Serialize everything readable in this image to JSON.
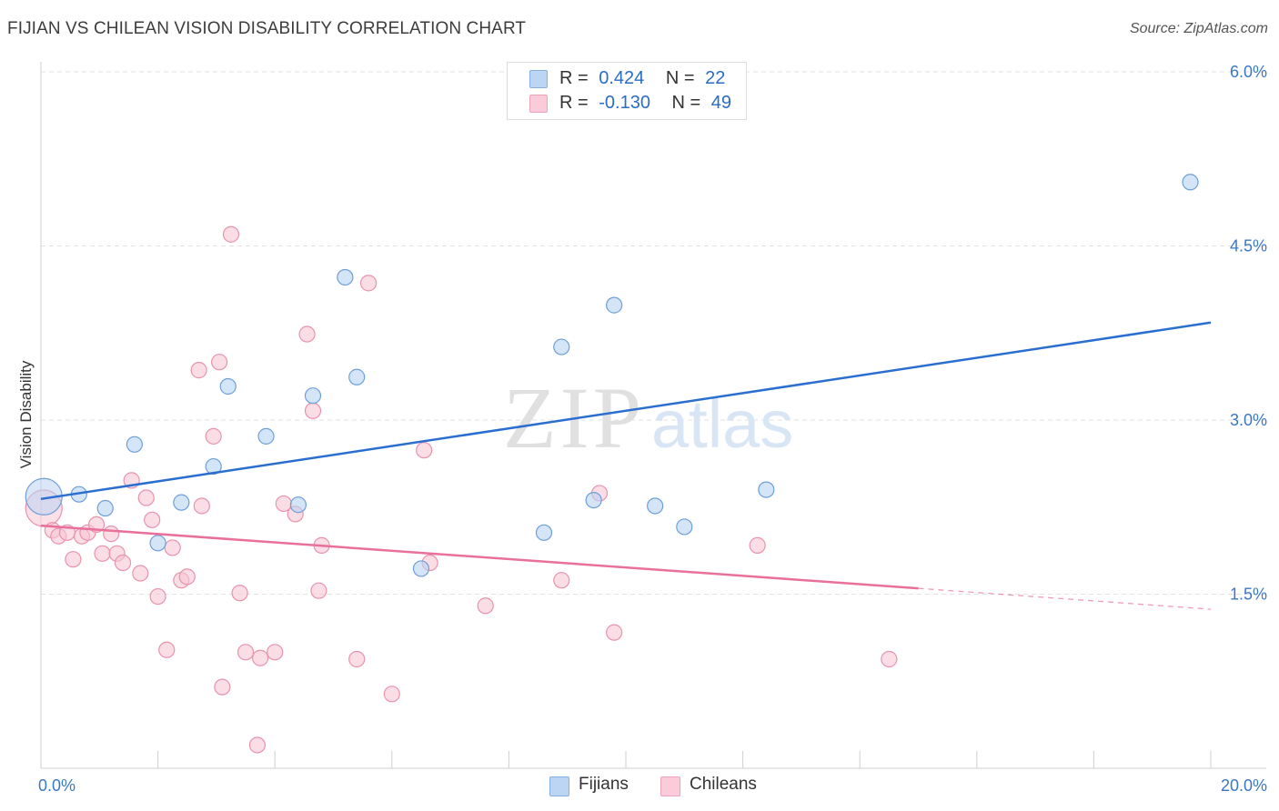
{
  "header": {
    "title": "FIJIAN VS CHILEAN VISION DISABILITY CORRELATION CHART",
    "source": "Source: ZipAtlas.com"
  },
  "watermark": {
    "zip": "ZIP",
    "atlas": "atlas"
  },
  "legend": {
    "rows": [
      {
        "r_label": "R =",
        "r_value": "0.424",
        "n_label": "N =",
        "n_value": "22",
        "color": "#a8c8f0"
      },
      {
        "r_label": "R =",
        "r_value": "-0.130",
        "n_label": "N =",
        "n_value": "49",
        "color": "#f5b8cb"
      }
    ]
  },
  "bottom_legend": {
    "fijians": "Fijians",
    "chileans": "Chileans"
  },
  "colors": {
    "fijians_fill": "#b9d3f3",
    "fijians_stroke": "#6e9fd8",
    "fijians_line": "#2a6fd0",
    "chileans_fill": "#f9c7d6",
    "chileans_stroke": "#e893ae",
    "chileans_line": "#e8709a",
    "grid": "#e2e2e2",
    "tick_label": "#3a78c4"
  },
  "chart_data": {
    "type": "scatter",
    "title": "FIJIAN VS CHILEAN VISION DISABILITY CORRELATION CHART",
    "ylabel": "Vision Disability",
    "xlabel": "",
    "xlim": [
      0,
      20
    ],
    "ylim": [
      0,
      6.2
    ],
    "x_tick_labels": [
      "0.0%",
      "20.0%"
    ],
    "y_ticks": [
      1.5,
      3.0,
      4.5,
      6.0
    ],
    "y_tick_labels": [
      "1.5%",
      "3.0%",
      "4.5%",
      "6.0%"
    ],
    "grid": true,
    "legend_position": "top-center",
    "series": [
      {
        "name": "Fijians",
        "r": 0.424,
        "n": 22,
        "trend": {
          "x": [
            0,
            20
          ],
          "y": [
            2.32,
            3.84
          ],
          "dashed_from": null
        },
        "points": [
          {
            "x": 0.05,
            "y": 2.34,
            "big": true
          },
          {
            "x": 0.65,
            "y": 2.36
          },
          {
            "x": 1.1,
            "y": 2.24
          },
          {
            "x": 1.6,
            "y": 2.79
          },
          {
            "x": 2.0,
            "y": 1.94
          },
          {
            "x": 2.4,
            "y": 2.29
          },
          {
            "x": 2.95,
            "y": 2.6
          },
          {
            "x": 3.2,
            "y": 3.29
          },
          {
            "x": 3.85,
            "y": 2.86
          },
          {
            "x": 4.4,
            "y": 2.27
          },
          {
            "x": 4.65,
            "y": 3.21
          },
          {
            "x": 5.2,
            "y": 4.23
          },
          {
            "x": 5.4,
            "y": 3.37
          },
          {
            "x": 6.5,
            "y": 1.72
          },
          {
            "x": 8.6,
            "y": 2.03
          },
          {
            "x": 8.9,
            "y": 3.63
          },
          {
            "x": 9.45,
            "y": 2.31
          },
          {
            "x": 9.8,
            "y": 3.99
          },
          {
            "x": 10.5,
            "y": 2.26
          },
          {
            "x": 11.0,
            "y": 2.08
          },
          {
            "x": 12.4,
            "y": 2.4
          },
          {
            "x": 19.65,
            "y": 5.05
          }
        ]
      },
      {
        "name": "Chileans",
        "r": -0.13,
        "n": 49,
        "trend": {
          "x": [
            0,
            20
          ],
          "y": [
            2.09,
            1.37
          ],
          "dashed_from": 15.0
        },
        "points": [
          {
            "x": 0.05,
            "y": 2.24,
            "big": true
          },
          {
            "x": 0.2,
            "y": 2.05
          },
          {
            "x": 0.3,
            "y": 2.0
          },
          {
            "x": 0.45,
            "y": 2.03
          },
          {
            "x": 0.55,
            "y": 1.8
          },
          {
            "x": 0.7,
            "y": 2.0
          },
          {
            "x": 0.8,
            "y": 2.03
          },
          {
            "x": 0.95,
            "y": 2.1
          },
          {
            "x": 1.05,
            "y": 1.85
          },
          {
            "x": 1.2,
            "y": 2.02
          },
          {
            "x": 1.3,
            "y": 1.85
          },
          {
            "x": 1.4,
            "y": 1.77
          },
          {
            "x": 1.55,
            "y": 2.48
          },
          {
            "x": 1.7,
            "y": 1.68
          },
          {
            "x": 1.8,
            "y": 2.33
          },
          {
            "x": 1.9,
            "y": 2.14
          },
          {
            "x": 2.0,
            "y": 1.48
          },
          {
            "x": 2.15,
            "y": 1.02
          },
          {
            "x": 2.25,
            "y": 1.9
          },
          {
            "x": 2.4,
            "y": 1.62
          },
          {
            "x": 2.5,
            "y": 1.65
          },
          {
            "x": 2.7,
            "y": 3.43
          },
          {
            "x": 2.75,
            "y": 2.26
          },
          {
            "x": 2.95,
            "y": 2.86
          },
          {
            "x": 3.05,
            "y": 3.5
          },
          {
            "x": 3.1,
            "y": 0.7
          },
          {
            "x": 3.25,
            "y": 4.6
          },
          {
            "x": 3.4,
            "y": 1.51
          },
          {
            "x": 3.5,
            "y": 1.0
          },
          {
            "x": 3.7,
            "y": 0.2
          },
          {
            "x": 3.75,
            "y": 0.95
          },
          {
            "x": 4.0,
            "y": 1.0
          },
          {
            "x": 4.15,
            "y": 2.28
          },
          {
            "x": 4.35,
            "y": 2.19
          },
          {
            "x": 4.55,
            "y": 3.74
          },
          {
            "x": 4.65,
            "y": 3.08
          },
          {
            "x": 4.75,
            "y": 1.53
          },
          {
            "x": 4.8,
            "y": 1.92
          },
          {
            "x": 5.4,
            "y": 0.94
          },
          {
            "x": 5.6,
            "y": 4.18
          },
          {
            "x": 6.0,
            "y": 0.64
          },
          {
            "x": 6.55,
            "y": 2.74
          },
          {
            "x": 6.65,
            "y": 1.77
          },
          {
            "x": 7.6,
            "y": 1.4
          },
          {
            "x": 8.9,
            "y": 1.62
          },
          {
            "x": 9.55,
            "y": 2.37
          },
          {
            "x": 9.8,
            "y": 1.17
          },
          {
            "x": 12.25,
            "y": 1.92
          },
          {
            "x": 14.5,
            "y": 0.94
          }
        ]
      }
    ]
  }
}
